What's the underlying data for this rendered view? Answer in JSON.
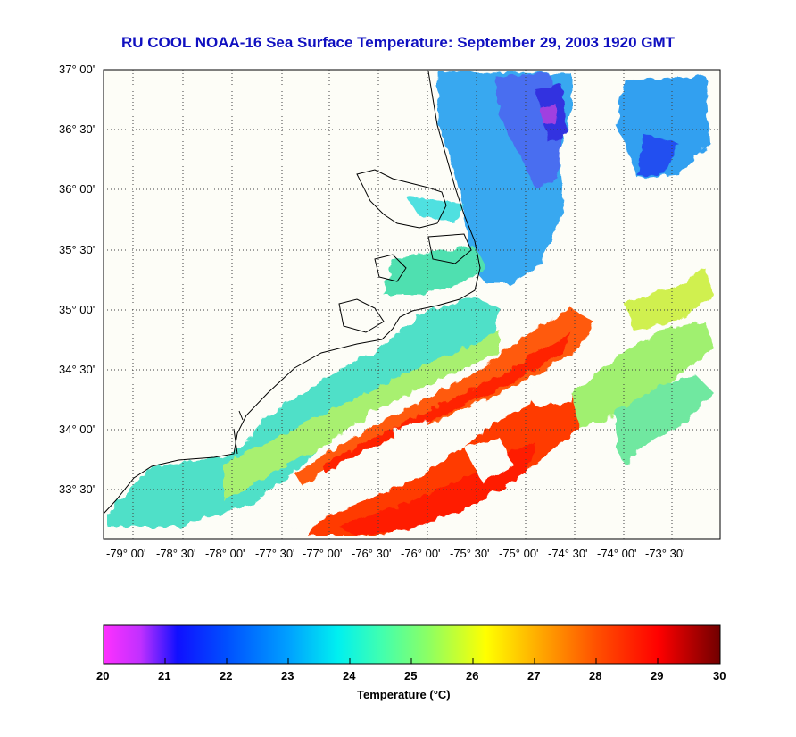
{
  "title": "RU COOL  NOAA-16  Sea Surface Temperature:  September 29, 2003 1920 GMT",
  "latitude_labels": [
    "37° 00'",
    "36° 30'",
    "36° 00'",
    "35° 30'",
    "35° 00'",
    "34° 30'",
    "34° 00'",
    "33° 30'"
  ],
  "longitude_labels": [
    "-79° 00'",
    "-78° 30'",
    "-78° 00'",
    "-77° 30'",
    "-77° 00'",
    "-76° 30'",
    "-76° 00'",
    "-75° 30'",
    "-75° 00'",
    "-74° 30'",
    "-74° 00'",
    "-73° 30'"
  ],
  "colorbar": {
    "min": 20,
    "max": 30,
    "ticks": [
      "20",
      "21",
      "22",
      "23",
      "24",
      "25",
      "26",
      "27",
      "28",
      "29",
      "30"
    ],
    "label": "Temperature (°C)",
    "stops": [
      {
        "t": 20.0,
        "color": "#ff30ff"
      },
      {
        "t": 20.6,
        "color": "#c030ff"
      },
      {
        "t": 21.2,
        "color": "#1010ff"
      },
      {
        "t": 22.0,
        "color": "#0050ff"
      },
      {
        "t": 23.0,
        "color": "#00a0ff"
      },
      {
        "t": 23.8,
        "color": "#00f0f0"
      },
      {
        "t": 24.5,
        "color": "#40ffb0"
      },
      {
        "t": 25.3,
        "color": "#90ff60"
      },
      {
        "t": 26.2,
        "color": "#ffff00"
      },
      {
        "t": 27.0,
        "color": "#ffb000"
      },
      {
        "t": 28.0,
        "color": "#ff5000"
      },
      {
        "t": 29.0,
        "color": "#ff0000"
      },
      {
        "t": 30.0,
        "color": "#700000"
      }
    ]
  },
  "colors": {
    "title": "#1010c0",
    "land": "#fdfdf7",
    "coastline": "#000000",
    "grid": "#404040"
  }
}
